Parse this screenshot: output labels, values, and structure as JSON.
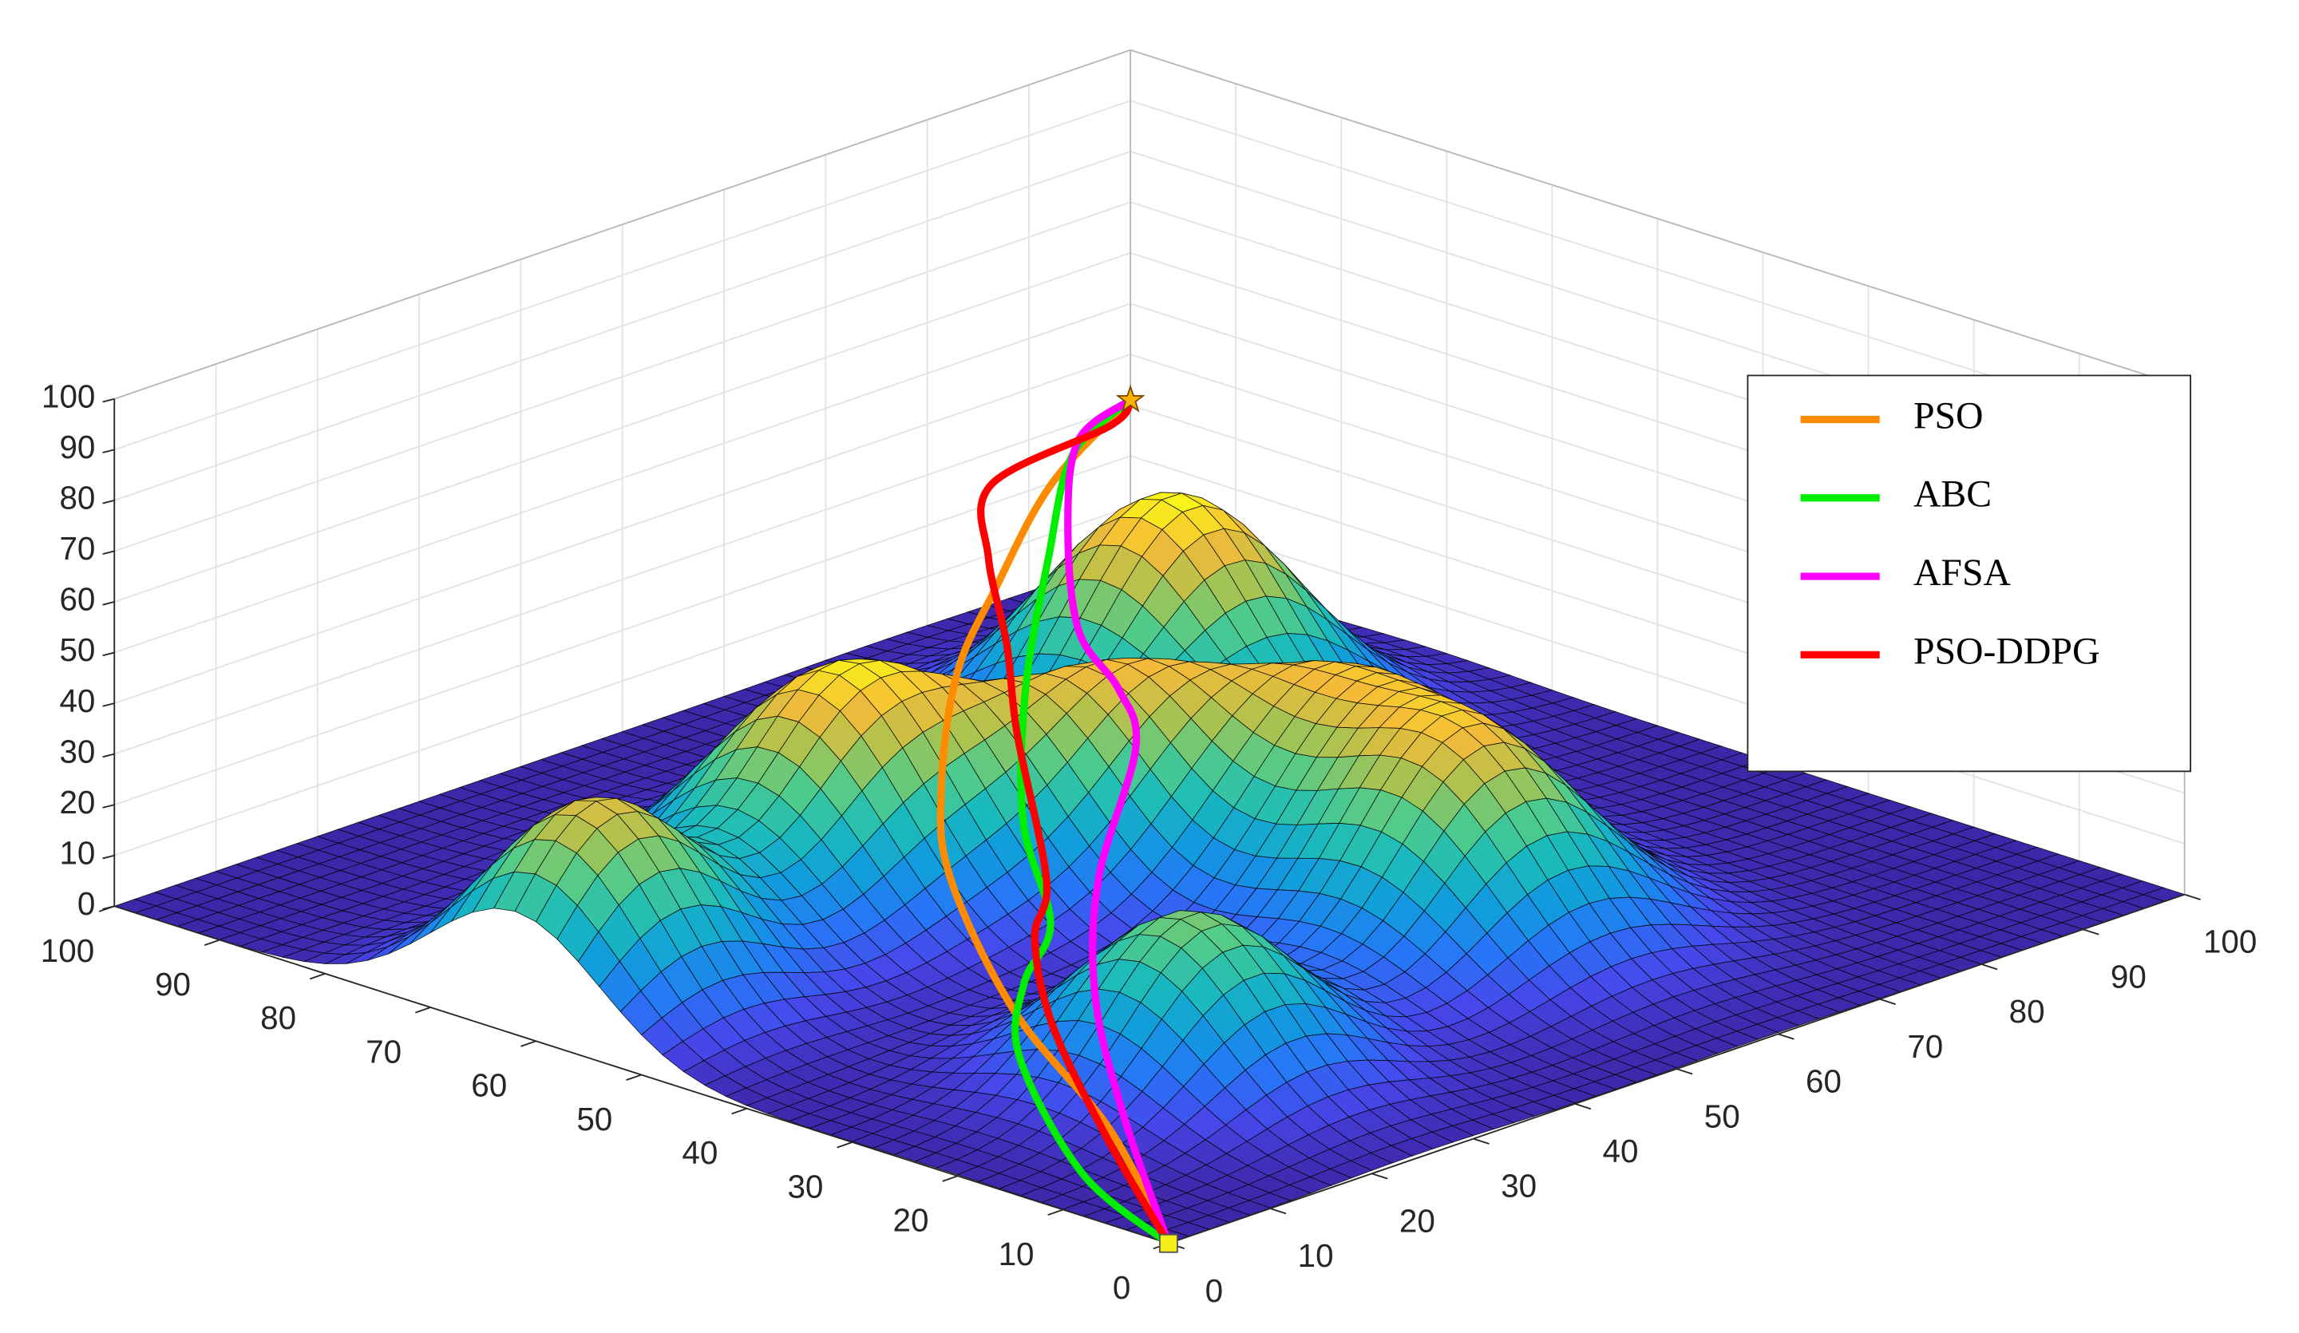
{
  "chart_data": {
    "type": "surface3d",
    "xlim": [
      0,
      100
    ],
    "ylim": [
      0,
      100
    ],
    "zlim": [
      0,
      100
    ],
    "xticks": [
      0,
      10,
      20,
      30,
      40,
      50,
      60,
      70,
      80,
      90,
      100
    ],
    "yticks": [
      0,
      10,
      20,
      30,
      40,
      50,
      60,
      70,
      80,
      90,
      100
    ],
    "zticks": [
      0,
      10,
      20,
      30,
      40,
      50,
      60,
      70,
      80,
      90,
      100
    ],
    "grid": true,
    "legend": "upper right",
    "colormap": "parula",
    "start_color": "#f5ee1a",
    "goal_color": "#ffb300",
    "peaks": [
      {
        "x": 75,
        "y": 72,
        "height": 48,
        "width": 9
      },
      {
        "x": 35,
        "y": 65,
        "height": 45,
        "width": 9
      },
      {
        "x": 8,
        "y": 62,
        "height": 40,
        "width": 8
      },
      {
        "x": 52,
        "y": 55,
        "height": 34,
        "width": 8
      },
      {
        "x": 64,
        "y": 44,
        "height": 30,
        "width": 8
      },
      {
        "x": 58,
        "y": 28,
        "height": 40,
        "width": 9
      },
      {
        "x": 25,
        "y": 22,
        "height": 33,
        "width": 8
      }
    ],
    "series": [
      {
        "name": "PSO",
        "color": "#ff8c00",
        "x": [
          0,
          11,
          20.6,
          33.4,
          43.6,
          58.5,
          71,
          86.1,
          100
        ],
        "y": [
          0,
          16.2,
          34.4,
          52.8,
          63.6,
          76.5,
          84.8,
          94.1,
          100
        ],
        "z": [
          0,
          4.2,
          8.5,
          13.4,
          16.6,
          20.9,
          24.1,
          27.9,
          31
        ]
      },
      {
        "name": "ABC",
        "color": "#00ee00",
        "x": [
          0,
          4.3,
          15.5,
          24.6,
          33,
          44,
          60,
          77.1,
          90.7,
          100
        ],
        "y": [
          0,
          12.3,
          29.1,
          37.4,
          43,
          56.2,
          71.4,
          85.7,
          96.5,
          100
        ],
        "z": [
          0,
          2.6,
          6.9,
          9.6,
          11.8,
          15.5,
          20.4,
          25.2,
          29,
          31
        ]
      },
      {
        "name": "AFSA",
        "color": "#ff00ff",
        "x": [
          0,
          13.4,
          26.2,
          40.5,
          58.3,
          64.5,
          69.7,
          81.6,
          92.7,
          100
        ],
        "y": [
          0,
          17.2,
          32.2,
          45.7,
          59.3,
          66.9,
          75.7,
          88.2,
          97.9,
          100
        ],
        "z": [
          0,
          4.7,
          9.1,
          13.4,
          18.2,
          20.4,
          22.5,
          26.3,
          29.5,
          31
        ]
      },
      {
        "name": "PSO-DDPG",
        "color": "#ff0000",
        "x": [
          0,
          9.2,
          20.6,
          30.4,
          38,
          54.3,
          64.5,
          74.2,
          83.2,
          96,
          100
        ],
        "y": [
          0,
          14.4,
          30.8,
          42,
          48.2,
          66.7,
          77.5,
          88.6,
          97,
          98,
          100
        ],
        "z": [
          0,
          3.7,
          8,
          11.2,
          13.4,
          18.8,
          22,
          25.2,
          27.9,
          30.1,
          31
        ]
      }
    ]
  }
}
